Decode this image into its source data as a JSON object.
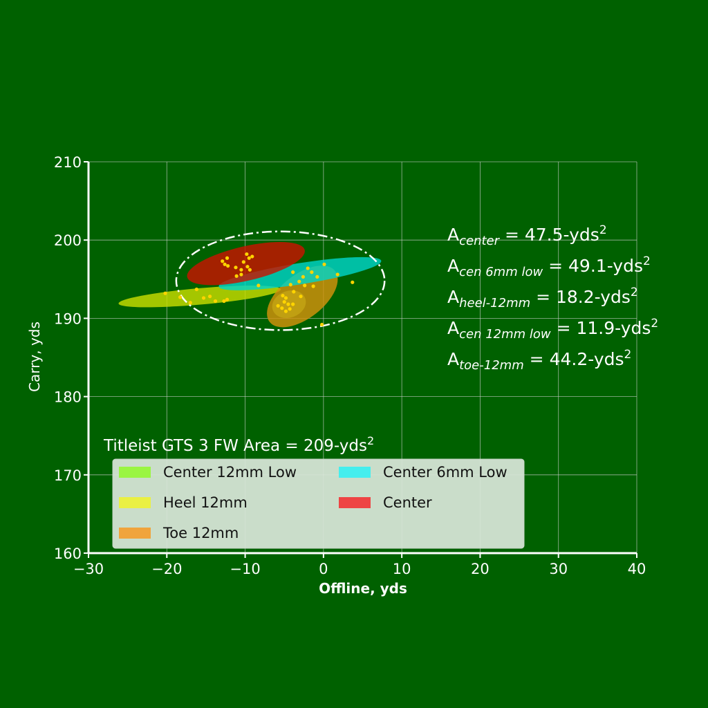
{
  "colors": {
    "background": "#006100",
    "axis": "#ffffff",
    "grid": "#d0d0d0",
    "text": "#ffffff",
    "legend_bg": "#d9e6d9",
    "legend_text": "#111111",
    "points": "#ffd400"
  },
  "chart_data": {
    "type": "scatter",
    "title": "",
    "xlabel": "Offline, yds",
    "ylabel": "Carry, yds",
    "xlim": [
      -30,
      40
    ],
    "ylim": [
      160,
      210
    ],
    "xticks": [
      -30,
      -20,
      -10,
      0,
      10,
      20,
      30,
      40
    ],
    "yticks": [
      160,
      170,
      180,
      190,
      200,
      210
    ],
    "xtick_labels": [
      "−30",
      "−20",
      "−10",
      "0",
      "10",
      "20",
      "30",
      "40"
    ],
    "ytick_labels": [
      "160",
      "170",
      "180",
      "190",
      "200",
      "210"
    ],
    "grid": true,
    "legend_placement": "lower-left",
    "overall": {
      "label": "Titleist GTS 3 FW Area = 209-yds",
      "label_sup": "2",
      "ellipse": {
        "cx": -5.5,
        "cy": 194.8,
        "rx": 13.3,
        "ry": 6.3,
        "angle": 0
      }
    },
    "area_annotations": [
      {
        "base": "A",
        "sub": "center",
        "value": " = 47.5-yds",
        "sup": "2"
      },
      {
        "base": "A",
        "sub": "cen 6mm low",
        "value": " = 49.1-yds",
        "sup": "2"
      },
      {
        "base": "A",
        "sub": "heel-12mm",
        "value": " = 18.2-yds",
        "sup": "2"
      },
      {
        "base": "A",
        "sub": "cen 12mm low",
        "value": " = 11.9-yds",
        "sup": "2"
      },
      {
        "base": "A",
        "sub": "toe-12mm",
        "value": " = 44.2-yds",
        "sup": "2"
      }
    ],
    "series": [
      {
        "name": "Center 12mm Low",
        "color": "#7ef03c",
        "legend_color": "#9af542",
        "ellipse": {
          "cx": -4.4,
          "cy": 191.8,
          "rx": 2.2,
          "ry": 1.7,
          "angle": -20
        },
        "points": [
          [
            -5.8,
            191.6
          ],
          [
            -5.0,
            192.1
          ],
          [
            -4.3,
            191.2
          ],
          [
            -4.8,
            190.9
          ],
          [
            -3.9,
            191.8
          ],
          [
            -5.3,
            191.3
          ]
        ]
      },
      {
        "name": "Heel 12mm",
        "color": "#c8dd00",
        "legend_color": "#eaf043",
        "ellipse": {
          "cx": -15.8,
          "cy": 192.8,
          "rx": 10.4,
          "ry": 1.05,
          "angle": -5
        },
        "points": [
          [
            -20.2,
            193.2
          ],
          [
            -18.3,
            192.7
          ],
          [
            -17.0,
            192.0
          ],
          [
            -15.3,
            192.6
          ],
          [
            -14.5,
            192.8
          ],
          [
            -13.8,
            192.2
          ],
          [
            -12.7,
            192.2
          ],
          [
            -12.3,
            192.4
          ],
          [
            -16.2,
            193.7
          ]
        ]
      },
      {
        "name": "Toe 12mm",
        "color": "#d4920c",
        "legend_color": "#f0a43c",
        "ellipse": {
          "cx": -2.7,
          "cy": 192.8,
          "rx": 5.3,
          "ry": 2.8,
          "angle": -38
        },
        "points": [
          [
            -4.8,
            192.6
          ],
          [
            -4.5,
            191.8
          ],
          [
            -3.8,
            193.4
          ],
          [
            -2.9,
            192.8
          ],
          [
            -4.2,
            194.3
          ],
          [
            -3.1,
            194.7
          ],
          [
            -2.6,
            195.3
          ],
          [
            -0.2,
            189.2
          ],
          [
            -5.2,
            192.9
          ]
        ]
      },
      {
        "name": "Center 6mm Low",
        "color": "#00d4c8",
        "legend_color": "#45eeee",
        "ellipse": {
          "cx": -3.0,
          "cy": 195.7,
          "rx": 10.5,
          "ry": 1.35,
          "angle": -9
        },
        "points": [
          [
            -2.0,
            196.4
          ],
          [
            -1.5,
            195.9
          ],
          [
            -0.8,
            195.3
          ],
          [
            0.1,
            196.9
          ],
          [
            1.8,
            195.6
          ],
          [
            3.7,
            194.6
          ],
          [
            -1.3,
            194.1
          ],
          [
            -2.4,
            194.2
          ]
        ]
      },
      {
        "name": "Center",
        "color": "#c81400",
        "legend_color": "#ee4444",
        "ellipse": {
          "cx": -9.9,
          "cy": 197.0,
          "rx": 7.7,
          "ry": 2.2,
          "angle": -13
        },
        "points": [
          [
            -12.9,
            197.3
          ],
          [
            -12.3,
            197.7
          ],
          [
            -12.6,
            196.9
          ],
          [
            -12.2,
            196.7
          ],
          [
            -11.2,
            196.5
          ],
          [
            -10.5,
            196.2
          ],
          [
            -9.7,
            196.6
          ],
          [
            -9.4,
            196.2
          ],
          [
            -9.5,
            197.7
          ],
          [
            -9.8,
            198.2
          ],
          [
            -9.1,
            197.9
          ],
          [
            -10.2,
            197.2
          ],
          [
            -11.1,
            195.4
          ],
          [
            -10.5,
            195.6
          ],
          [
            -8.3,
            194.2
          ],
          [
            -3.9,
            195.9
          ]
        ]
      }
    ]
  }
}
